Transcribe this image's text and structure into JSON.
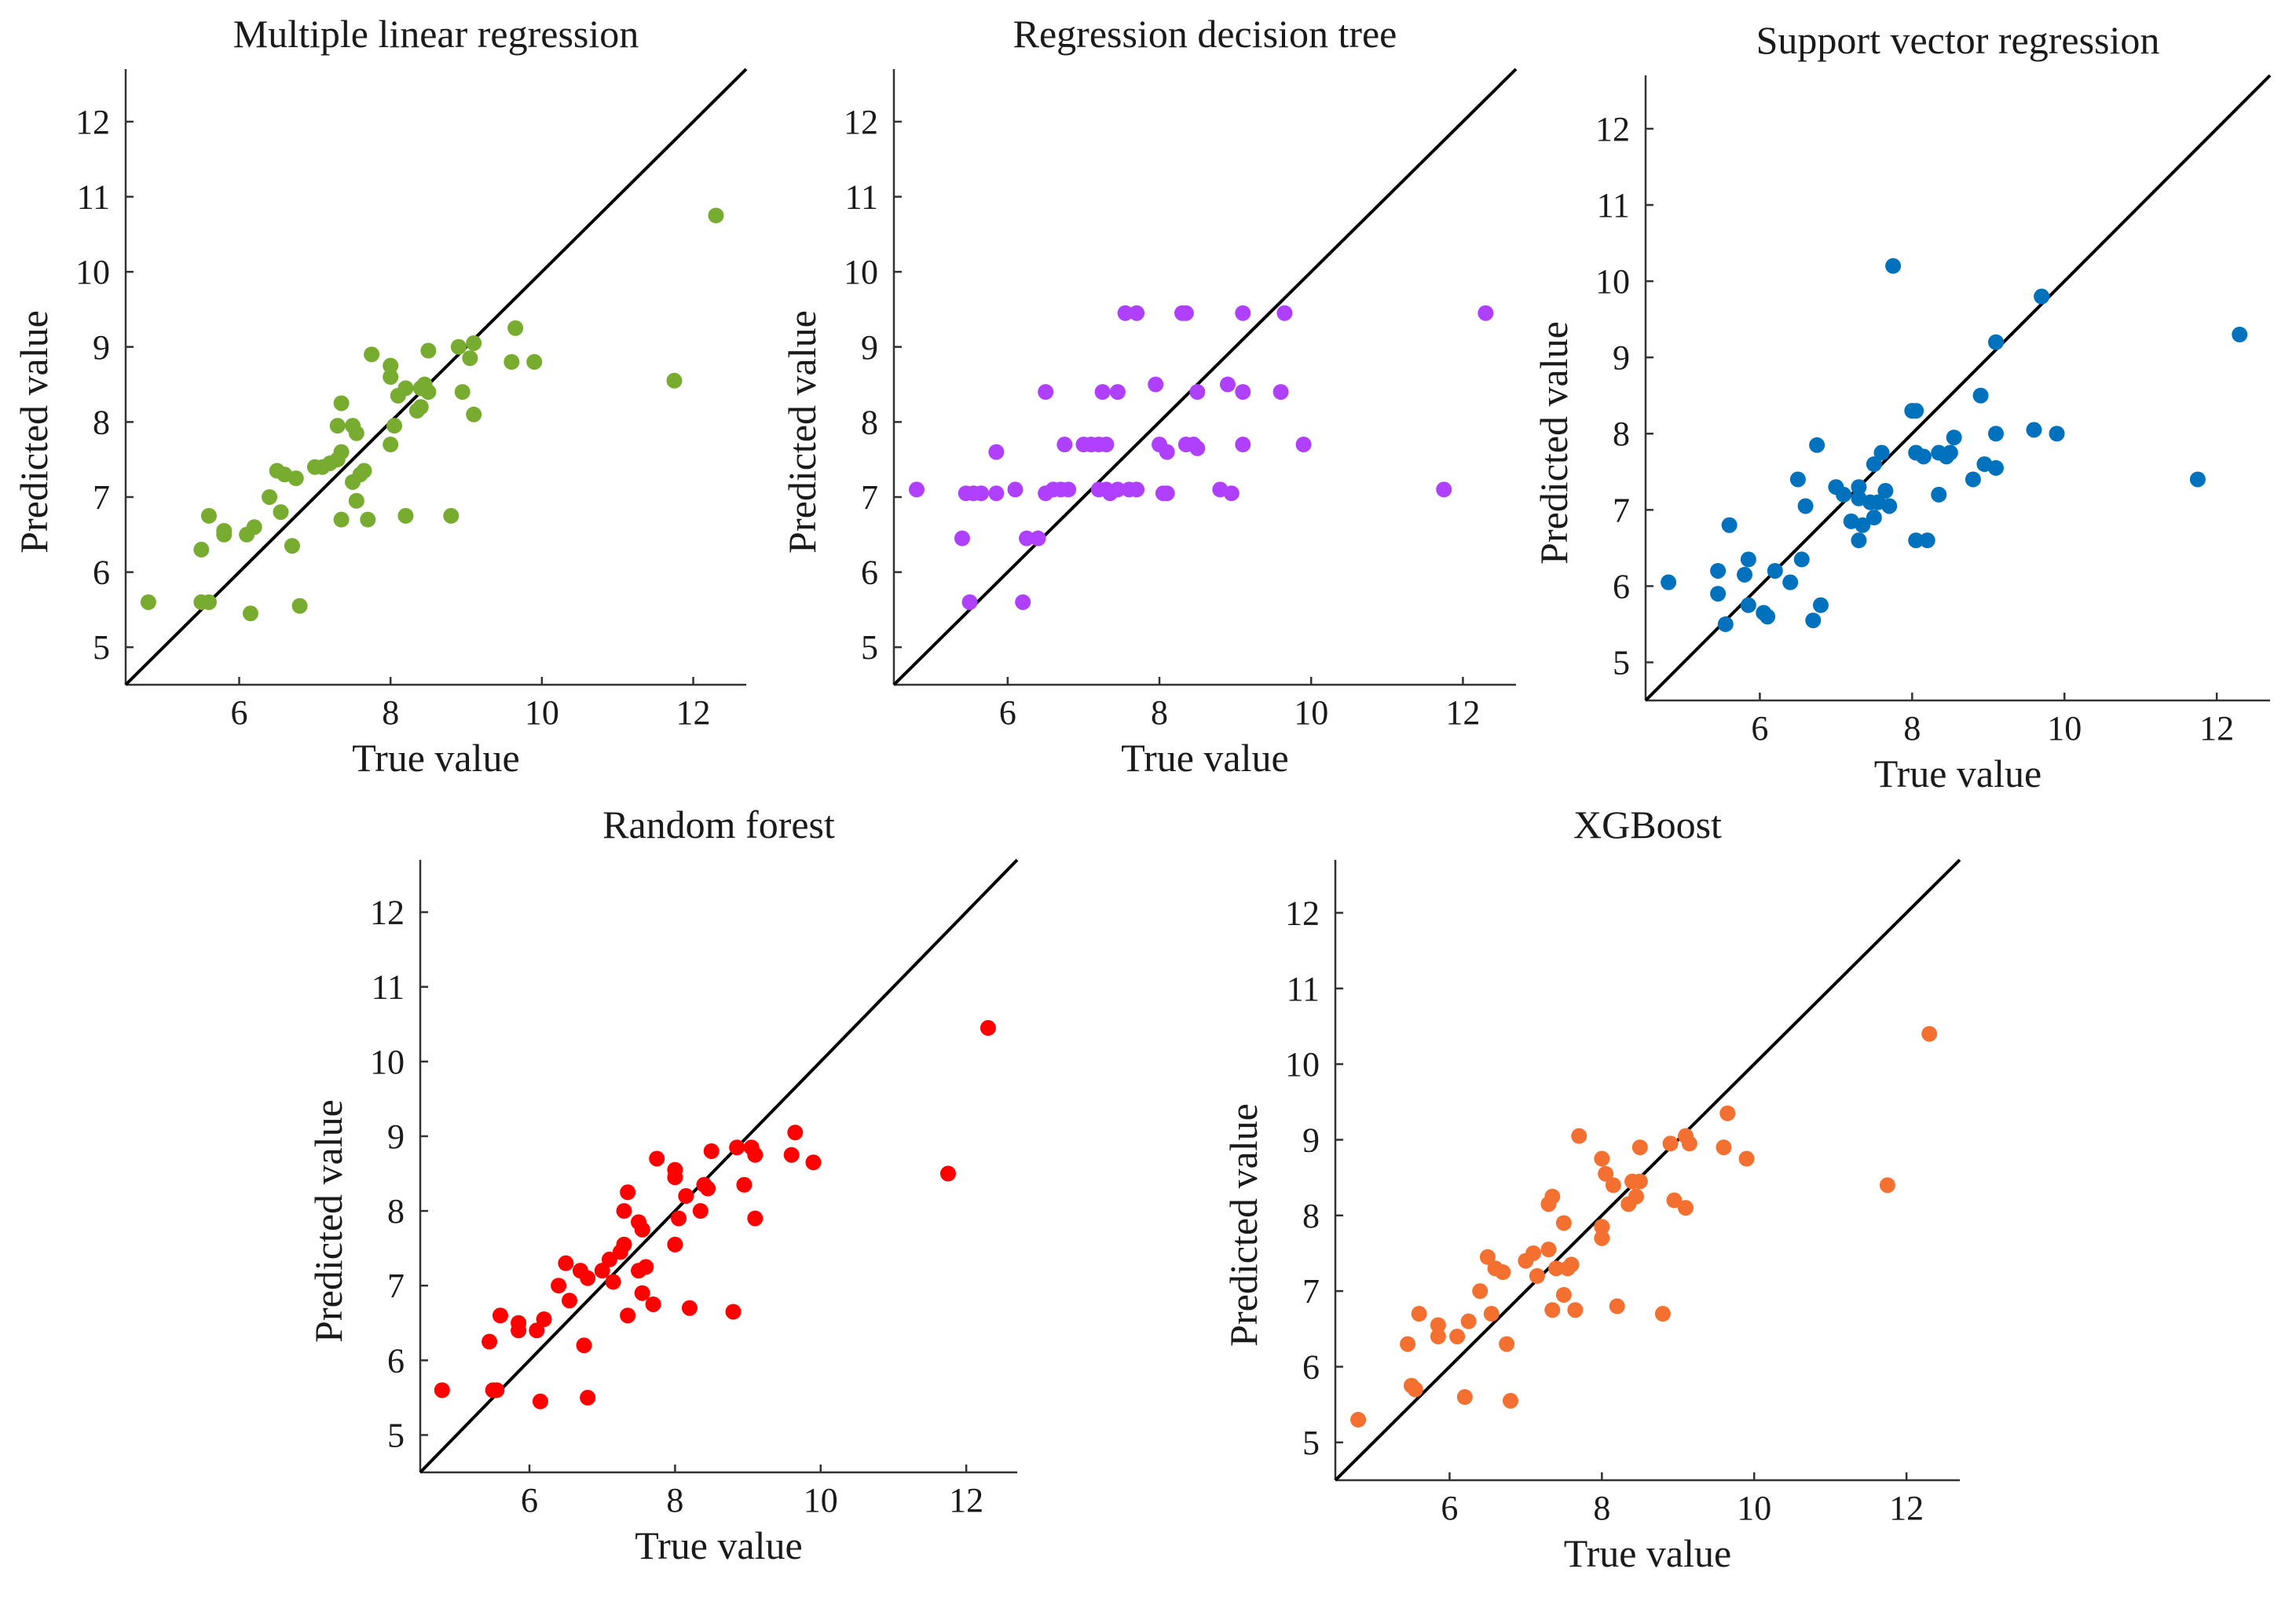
{
  "chart_data": [
    {
      "type": "scatter",
      "title": "Multiple linear regression",
      "xlabel": "True value",
      "ylabel": "Predicted value",
      "xlim": [
        4.5,
        12.7
      ],
      "ylim": [
        4.5,
        12.7
      ],
      "xticks": [
        6,
        8,
        10,
        12
      ],
      "yticks": [
        5,
        6,
        7,
        8,
        9,
        10,
        11,
        12
      ],
      "color": "#77ac30",
      "reference_line": "y = x",
      "grid": false,
      "points": [
        [
          4.8,
          5.6
        ],
        [
          5.5,
          6.3
        ],
        [
          5.5,
          5.6
        ],
        [
          5.6,
          5.6
        ],
        [
          5.6,
          6.75
        ],
        [
          5.8,
          6.55
        ],
        [
          5.8,
          6.5
        ],
        [
          6.1,
          6.5
        ],
        [
          6.2,
          6.6
        ],
        [
          6.15,
          5.45
        ],
        [
          6.4,
          7.0
        ],
        [
          6.5,
          7.35
        ],
        [
          6.6,
          7.3
        ],
        [
          6.55,
          6.8
        ],
        [
          6.7,
          6.35
        ],
        [
          6.75,
          7.25
        ],
        [
          6.8,
          5.55
        ],
        [
          7.0,
          7.4
        ],
        [
          7.1,
          7.4
        ],
        [
          7.2,
          7.45
        ],
        [
          7.3,
          7.5
        ],
        [
          7.3,
          7.95
        ],
        [
          7.35,
          8.25
        ],
        [
          7.35,
          7.6
        ],
        [
          7.35,
          6.7
        ],
        [
          7.5,
          7.95
        ],
        [
          7.5,
          7.2
        ],
        [
          7.55,
          7.85
        ],
        [
          7.55,
          6.95
        ],
        [
          7.6,
          7.3
        ],
        [
          7.65,
          7.35
        ],
        [
          7.7,
          6.7
        ],
        [
          7.75,
          8.9
        ],
        [
          8.0,
          8.75
        ],
        [
          8.0,
          8.6
        ],
        [
          8.0,
          7.7
        ],
        [
          8.05,
          7.95
        ],
        [
          8.1,
          8.35
        ],
        [
          8.2,
          8.45
        ],
        [
          8.2,
          6.75
        ],
        [
          8.35,
          8.15
        ],
        [
          8.4,
          8.45
        ],
        [
          8.4,
          8.2
        ],
        [
          8.45,
          8.5
        ],
        [
          8.5,
          8.4
        ],
        [
          8.5,
          8.95
        ],
        [
          8.8,
          6.75
        ],
        [
          8.9,
          9.0
        ],
        [
          8.95,
          8.4
        ],
        [
          9.05,
          8.85
        ],
        [
          9.1,
          8.1
        ],
        [
          9.1,
          9.05
        ],
        [
          9.6,
          8.8
        ],
        [
          9.65,
          9.25
        ],
        [
          9.9,
          8.8
        ],
        [
          11.75,
          8.55
        ],
        [
          12.3,
          10.75
        ]
      ]
    },
    {
      "type": "scatter",
      "title": "Regression decision tree",
      "xlabel": "True value",
      "ylabel": "Predicted value",
      "xlim": [
        4.5,
        12.7
      ],
      "ylim": [
        4.5,
        12.7
      ],
      "xticks": [
        6,
        8,
        10,
        12
      ],
      "yticks": [
        5,
        6,
        7,
        8,
        9,
        10,
        11,
        12
      ],
      "color": "#b040ff",
      "reference_line": "y = x",
      "grid": false,
      "points": [
        [
          4.8,
          7.1
        ],
        [
          5.4,
          6.45
        ],
        [
          5.45,
          7.05
        ],
        [
          5.5,
          5.6
        ],
        [
          5.55,
          7.05
        ],
        [
          5.65,
          7.05
        ],
        [
          5.85,
          7.6
        ],
        [
          5.85,
          7.05
        ],
        [
          6.1,
          7.1
        ],
        [
          6.2,
          5.6
        ],
        [
          6.25,
          6.45
        ],
        [
          6.4,
          6.45
        ],
        [
          6.5,
          8.4
        ],
        [
          6.5,
          7.05
        ],
        [
          6.6,
          7.1
        ],
        [
          6.7,
          7.1
        ],
        [
          6.75,
          7.7
        ],
        [
          6.8,
          7.1
        ],
        [
          7.0,
          7.7
        ],
        [
          7.1,
          7.7
        ],
        [
          7.2,
          7.7
        ],
        [
          7.2,
          7.1
        ],
        [
          7.25,
          8.4
        ],
        [
          7.3,
          7.1
        ],
        [
          7.3,
          7.7
        ],
        [
          7.35,
          7.05
        ],
        [
          7.45,
          8.4
        ],
        [
          7.45,
          7.1
        ],
        [
          7.55,
          9.45
        ],
        [
          7.6,
          7.1
        ],
        [
          7.7,
          9.45
        ],
        [
          7.7,
          7.1
        ],
        [
          7.95,
          8.5
        ],
        [
          8.0,
          7.7
        ],
        [
          8.05,
          7.05
        ],
        [
          8.1,
          7.6
        ],
        [
          8.1,
          7.05
        ],
        [
          8.3,
          9.45
        ],
        [
          8.35,
          9.45
        ],
        [
          8.35,
          7.7
        ],
        [
          8.45,
          7.7
        ],
        [
          8.5,
          8.4
        ],
        [
          8.5,
          7.65
        ],
        [
          8.8,
          7.1
        ],
        [
          8.9,
          8.5
        ],
        [
          8.95,
          7.05
        ],
        [
          9.1,
          9.45
        ],
        [
          9.1,
          8.4
        ],
        [
          9.1,
          7.7
        ],
        [
          9.6,
          8.4
        ],
        [
          9.65,
          9.45
        ],
        [
          9.9,
          7.7
        ],
        [
          11.75,
          7.1
        ],
        [
          12.3,
          9.45
        ]
      ]
    },
    {
      "type": "scatter",
      "title": "Support vector regression",
      "xlabel": "True value",
      "ylabel": "Predicted value",
      "xlim": [
        4.5,
        12.7
      ],
      "ylim": [
        4.5,
        12.7
      ],
      "xticks": [
        6,
        8,
        10,
        12
      ],
      "yticks": [
        5,
        6,
        7,
        8,
        9,
        10,
        11,
        12
      ],
      "color": "#0072bd",
      "reference_line": "y = x",
      "grid": false,
      "points": [
        [
          4.8,
          6.05
        ],
        [
          5.45,
          6.2
        ],
        [
          5.45,
          5.9
        ],
        [
          5.55,
          5.5
        ],
        [
          5.6,
          6.8
        ],
        [
          5.8,
          6.15
        ],
        [
          5.85,
          6.35
        ],
        [
          5.85,
          5.75
        ],
        [
          6.05,
          5.65
        ],
        [
          6.1,
          5.6
        ],
        [
          6.2,
          6.2
        ],
        [
          6.4,
          6.05
        ],
        [
          6.5,
          7.4
        ],
        [
          6.55,
          6.35
        ],
        [
          6.6,
          7.05
        ],
        [
          6.7,
          5.55
        ],
        [
          6.75,
          7.85
        ],
        [
          6.8,
          5.75
        ],
        [
          7.0,
          7.3
        ],
        [
          7.1,
          7.2
        ],
        [
          7.2,
          6.85
        ],
        [
          7.3,
          7.3
        ],
        [
          7.3,
          7.15
        ],
        [
          7.3,
          6.6
        ],
        [
          7.35,
          6.8
        ],
        [
          7.45,
          7.1
        ],
        [
          7.5,
          6.9
        ],
        [
          7.5,
          7.6
        ],
        [
          7.55,
          7.1
        ],
        [
          7.6,
          7.75
        ],
        [
          7.65,
          7.25
        ],
        [
          7.7,
          7.05
        ],
        [
          7.75,
          10.2
        ],
        [
          8.0,
          8.3
        ],
        [
          8.05,
          8.3
        ],
        [
          8.05,
          7.75
        ],
        [
          8.05,
          6.6
        ],
        [
          8.15,
          7.7
        ],
        [
          8.2,
          6.6
        ],
        [
          8.35,
          7.75
        ],
        [
          8.35,
          7.2
        ],
        [
          8.45,
          7.7
        ],
        [
          8.5,
          7.75
        ],
        [
          8.55,
          7.95
        ],
        [
          8.8,
          7.4
        ],
        [
          8.9,
          8.5
        ],
        [
          8.95,
          7.6
        ],
        [
          9.1,
          9.2
        ],
        [
          9.1,
          8.0
        ],
        [
          9.1,
          7.55
        ],
        [
          9.6,
          8.05
        ],
        [
          9.7,
          9.8
        ],
        [
          9.9,
          8.0
        ],
        [
          11.75,
          7.4
        ],
        [
          12.3,
          9.3
        ]
      ]
    },
    {
      "type": "scatter",
      "title": "Random forest",
      "xlabel": "True value",
      "ylabel": "Predicted value",
      "xlim": [
        4.5,
        12.7
      ],
      "ylim": [
        4.5,
        12.7
      ],
      "xticks": [
        6,
        8,
        10,
        12
      ],
      "yticks": [
        5,
        6,
        7,
        8,
        9,
        10,
        11,
        12
      ],
      "color": "#ff0000",
      "reference_line": "y = x",
      "grid": false,
      "points": [
        [
          4.8,
          5.6
        ],
        [
          5.45,
          6.25
        ],
        [
          5.5,
          5.6
        ],
        [
          5.55,
          5.6
        ],
        [
          5.6,
          6.6
        ],
        [
          5.85,
          6.5
        ],
        [
          5.85,
          6.4
        ],
        [
          6.1,
          6.4
        ],
        [
          6.15,
          5.45
        ],
        [
          6.2,
          6.55
        ],
        [
          6.4,
          7.0
        ],
        [
          6.5,
          7.3
        ],
        [
          6.55,
          6.8
        ],
        [
          6.7,
          7.2
        ],
        [
          6.75,
          6.2
        ],
        [
          6.8,
          5.5
        ],
        [
          6.8,
          7.1
        ],
        [
          7.0,
          7.2
        ],
        [
          7.1,
          7.35
        ],
        [
          7.15,
          7.05
        ],
        [
          7.25,
          7.45
        ],
        [
          7.3,
          7.55
        ],
        [
          7.3,
          8.0
        ],
        [
          7.35,
          8.25
        ],
        [
          7.35,
          6.6
        ],
        [
          7.5,
          7.85
        ],
        [
          7.5,
          7.2
        ],
        [
          7.55,
          6.9
        ],
        [
          7.55,
          7.75
        ],
        [
          7.6,
          7.25
        ],
        [
          7.7,
          6.75
        ],
        [
          7.75,
          8.7
        ],
        [
          8.0,
          8.55
        ],
        [
          8.0,
          8.45
        ],
        [
          8.0,
          7.55
        ],
        [
          8.05,
          7.9
        ],
        [
          8.15,
          8.2
        ],
        [
          8.2,
          6.7
        ],
        [
          8.35,
          8.0
        ],
        [
          8.4,
          8.35
        ],
        [
          8.45,
          8.3
        ],
        [
          8.5,
          8.8
        ],
        [
          8.8,
          6.65
        ],
        [
          8.85,
          8.85
        ],
        [
          8.95,
          8.35
        ],
        [
          9.05,
          8.85
        ],
        [
          9.1,
          7.9
        ],
        [
          9.1,
          8.75
        ],
        [
          9.6,
          8.75
        ],
        [
          9.65,
          9.05
        ],
        [
          9.9,
          8.65
        ],
        [
          11.75,
          8.5
        ],
        [
          12.3,
          10.45
        ]
      ]
    },
    {
      "type": "scatter",
      "title": "XGBoost",
      "xlabel": "True value",
      "ylabel": "Predicted value",
      "xlim": [
        4.5,
        12.7
      ],
      "ylim": [
        4.5,
        12.7
      ],
      "xticks": [
        6,
        8,
        10,
        12
      ],
      "yticks": [
        5,
        6,
        7,
        8,
        9,
        10,
        11,
        12
      ],
      "color": "#f47030",
      "reference_line": "y = x",
      "grid": false,
      "points": [
        [
          4.8,
          5.3
        ],
        [
          5.45,
          6.3
        ],
        [
          5.5,
          5.75
        ],
        [
          5.55,
          5.7
        ],
        [
          5.6,
          6.7
        ],
        [
          5.85,
          6.55
        ],
        [
          5.85,
          6.4
        ],
        [
          6.1,
          6.4
        ],
        [
          6.2,
          5.6
        ],
        [
          6.25,
          6.6
        ],
        [
          6.4,
          7.0
        ],
        [
          6.5,
          7.45
        ],
        [
          6.55,
          6.7
        ],
        [
          6.6,
          7.3
        ],
        [
          6.7,
          7.25
        ],
        [
          6.75,
          6.3
        ],
        [
          6.8,
          5.55
        ],
        [
          7.0,
          7.4
        ],
        [
          7.1,
          7.5
        ],
        [
          7.15,
          7.2
        ],
        [
          7.3,
          7.55
        ],
        [
          7.3,
          8.15
        ],
        [
          7.35,
          8.25
        ],
        [
          7.35,
          6.75
        ],
        [
          7.4,
          7.3
        ],
        [
          7.5,
          7.9
        ],
        [
          7.5,
          6.95
        ],
        [
          7.55,
          7.3
        ],
        [
          7.6,
          7.35
        ],
        [
          7.65,
          6.75
        ],
        [
          7.7,
          9.05
        ],
        [
          8.0,
          8.75
        ],
        [
          8.0,
          7.85
        ],
        [
          8.0,
          7.7
        ],
        [
          8.05,
          8.55
        ],
        [
          8.15,
          8.4
        ],
        [
          8.2,
          6.8
        ],
        [
          8.35,
          8.15
        ],
        [
          8.4,
          8.45
        ],
        [
          8.45,
          8.25
        ],
        [
          8.5,
          8.45
        ],
        [
          8.5,
          8.9
        ],
        [
          8.8,
          6.7
        ],
        [
          8.9,
          8.95
        ],
        [
          8.95,
          8.2
        ],
        [
          9.1,
          8.1
        ],
        [
          9.1,
          9.05
        ],
        [
          9.15,
          8.95
        ],
        [
          9.6,
          8.9
        ],
        [
          9.65,
          9.35
        ],
        [
          9.9,
          8.75
        ],
        [
          11.75,
          8.4
        ],
        [
          12.3,
          10.4
        ]
      ]
    }
  ]
}
